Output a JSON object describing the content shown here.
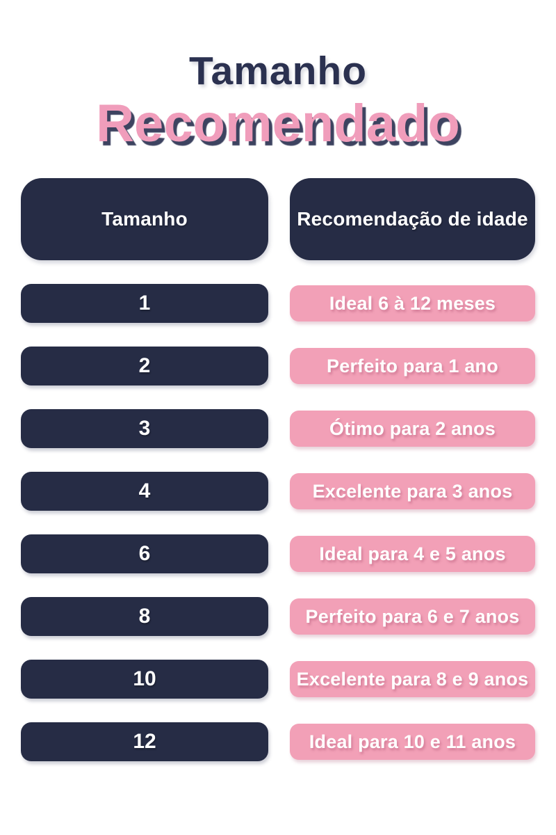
{
  "title": {
    "line1": "Tamanho",
    "line2": "Recomendado"
  },
  "table": {
    "header": {
      "size_label": "Tamanho",
      "recommendation_label": "Recomendação de idade"
    },
    "rows": [
      {
        "size": "1",
        "recommendation": "Ideal 6 à 12 meses"
      },
      {
        "size": "2",
        "recommendation": "Perfeito para 1 ano"
      },
      {
        "size": "3",
        "recommendation": "Ótimo para 2 anos"
      },
      {
        "size": "4",
        "recommendation": "Excelente para 3 anos"
      },
      {
        "size": "6",
        "recommendation": "Ideal para 4 e 5 anos"
      },
      {
        "size": "8",
        "recommendation": "Perfeito para 6 e 7 anos"
      },
      {
        "size": "10",
        "recommendation": "Excelente para 8 e 9 anos"
      },
      {
        "size": "12",
        "recommendation": "Ideal para 10 e 11 anos"
      }
    ]
  },
  "colors": {
    "navy": "#262C45",
    "pink": "#F2A0B7",
    "title_navy": "#2B3150",
    "title_pink": "#F09DBB",
    "text_white": "#FFFFFF",
    "background": "#FFFFFF"
  }
}
